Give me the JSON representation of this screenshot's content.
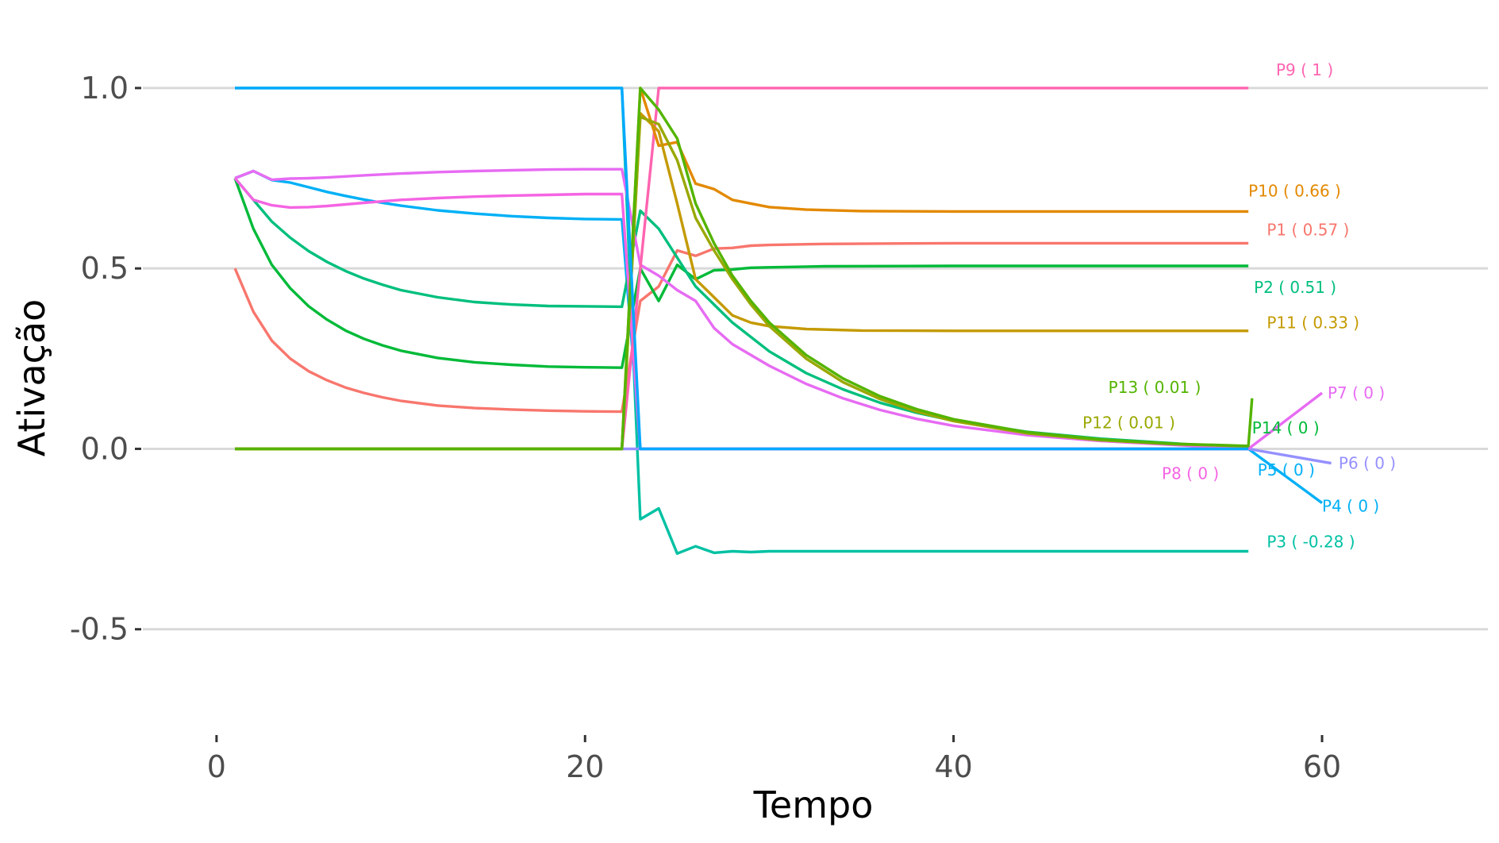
{
  "chart_data": {
    "type": "line",
    "title": "",
    "xlabel": "Tempo",
    "ylabel": "Ativação",
    "xlim": [
      -4,
      69
    ],
    "ylim": [
      -0.78,
      1.2
    ],
    "x_ticks": [
      0,
      20,
      40,
      60
    ],
    "x_tick_labels": [
      "0",
      "20",
      "40",
      "60"
    ],
    "y_ticks": [
      1.0,
      0.5,
      0.0,
      -0.5
    ],
    "y_tick_labels": [
      "1.0",
      "0.5",
      "0.0",
      "-0.5"
    ],
    "grid": "horizontal major",
    "legend": "none (direct labels at line ends)",
    "series": [
      {
        "id": "P1",
        "color": "#F8766D",
        "label": "P1 ( 0.57 )",
        "points": [
          [
            1,
            0.5
          ],
          [
            2,
            0.38
          ],
          [
            3,
            0.3
          ],
          [
            4,
            0.25
          ],
          [
            5,
            0.215
          ],
          [
            6,
            0.19
          ],
          [
            7,
            0.17
          ],
          [
            8,
            0.155
          ],
          [
            9,
            0.143
          ],
          [
            10,
            0.133
          ],
          [
            12,
            0.12
          ],
          [
            14,
            0.113
          ],
          [
            16,
            0.109
          ],
          [
            18,
            0.106
          ],
          [
            20,
            0.104
          ],
          [
            22,
            0.103
          ],
          [
            23,
            0.41
          ],
          [
            24,
            0.45
          ],
          [
            25,
            0.55
          ],
          [
            26,
            0.535
          ],
          [
            27,
            0.555
          ],
          [
            28,
            0.557
          ],
          [
            29,
            0.563
          ],
          [
            30,
            0.565
          ],
          [
            33,
            0.568
          ],
          [
            40,
            0.57
          ],
          [
            56,
            0.57
          ]
        ]
      },
      {
        "id": "P2",
        "color": "#00BA38",
        "label": "P2 ( 0.51 )",
        "points": [
          [
            1,
            0.75
          ],
          [
            2,
            0.61
          ],
          [
            3,
            0.51
          ],
          [
            4,
            0.445
          ],
          [
            5,
            0.395
          ],
          [
            6,
            0.358
          ],
          [
            7,
            0.328
          ],
          [
            8,
            0.305
          ],
          [
            9,
            0.287
          ],
          [
            10,
            0.272
          ],
          [
            12,
            0.252
          ],
          [
            14,
            0.24
          ],
          [
            16,
            0.233
          ],
          [
            18,
            0.228
          ],
          [
            20,
            0.226
          ],
          [
            22,
            0.225
          ],
          [
            23,
            0.5
          ],
          [
            24,
            0.41
          ],
          [
            25,
            0.51
          ],
          [
            26,
            0.47
          ],
          [
            27,
            0.495
          ],
          [
            28,
            0.497
          ],
          [
            29,
            0.502
          ],
          [
            30,
            0.503
          ],
          [
            33,
            0.506
          ],
          [
            40,
            0.507
          ],
          [
            56,
            0.507
          ]
        ]
      },
      {
        "id": "P3",
        "color": "#00C1A3",
        "label": "P3 ( -0.28 )",
        "points": [
          [
            1,
            1.0
          ],
          [
            22,
            1.0
          ],
          [
            23,
            -0.195
          ],
          [
            24,
            -0.165
          ],
          [
            25,
            -0.29
          ],
          [
            26,
            -0.27
          ],
          [
            27,
            -0.288
          ],
          [
            28,
            -0.284
          ],
          [
            29,
            -0.286
          ],
          [
            30,
            -0.284
          ],
          [
            35,
            -0.284
          ],
          [
            56,
            -0.284
          ]
        ]
      },
      {
        "id": "P4",
        "color": "#00B0F6",
        "label": "P4 ( 0 )",
        "points": [
          [
            1,
            0.75
          ],
          [
            2,
            0.77
          ],
          [
            3,
            0.745
          ],
          [
            4,
            0.738
          ],
          [
            5,
            0.725
          ],
          [
            6,
            0.712
          ],
          [
            7,
            0.701
          ],
          [
            8,
            0.691
          ],
          [
            9,
            0.682
          ],
          [
            10,
            0.674
          ],
          [
            12,
            0.661
          ],
          [
            14,
            0.652
          ],
          [
            16,
            0.645
          ],
          [
            18,
            0.64
          ],
          [
            20,
            0.637
          ],
          [
            22,
            0.636
          ],
          [
            23,
            0.0
          ],
          [
            56,
            0.0
          ],
          [
            60,
            -0.15
          ]
        ]
      },
      {
        "id": "P5",
        "color": "#00BF7D",
        "label": "P5 ( 0 )",
        "points": [
          [
            1,
            0.75
          ],
          [
            2,
            0.69
          ],
          [
            3,
            0.63
          ],
          [
            4,
            0.585
          ],
          [
            5,
            0.548
          ],
          [
            6,
            0.518
          ],
          [
            7,
            0.493
          ],
          [
            8,
            0.472
          ],
          [
            9,
            0.455
          ],
          [
            10,
            0.44
          ],
          [
            12,
            0.42
          ],
          [
            14,
            0.407
          ],
          [
            16,
            0.4
          ],
          [
            18,
            0.396
          ],
          [
            20,
            0.395
          ],
          [
            22,
            0.394
          ],
          [
            23,
            0.66
          ],
          [
            24,
            0.61
          ],
          [
            25,
            0.53
          ],
          [
            26,
            0.45
          ],
          [
            27,
            0.4
          ],
          [
            28,
            0.35
          ],
          [
            30,
            0.27
          ],
          [
            32,
            0.21
          ],
          [
            34,
            0.165
          ],
          [
            36,
            0.128
          ],
          [
            38,
            0.1
          ],
          [
            40,
            0.078
          ],
          [
            44,
            0.047
          ],
          [
            48,
            0.028
          ],
          [
            52,
            0.015
          ],
          [
            56,
            0.0
          ]
        ]
      },
      {
        "id": "P6",
        "color": "#9590FF",
        "label": "P6 ( 0 )",
        "points": [
          [
            1,
            0.0
          ],
          [
            22,
            0.0
          ],
          [
            23,
            0.0
          ],
          [
            56,
            0.0
          ],
          [
            60.5,
            -0.04
          ]
        ]
      },
      {
        "id": "P7",
        "color": "#E76BF3",
        "label": "P7 ( 0 )",
        "points": [
          [
            1,
            0.75
          ],
          [
            2,
            0.77
          ],
          [
            3,
            0.746
          ],
          [
            4,
            0.749
          ],
          [
            5,
            0.75
          ],
          [
            6,
            0.752
          ],
          [
            8,
            0.758
          ],
          [
            10,
            0.763
          ],
          [
            12,
            0.767
          ],
          [
            14,
            0.77
          ],
          [
            16,
            0.772
          ],
          [
            18,
            0.774
          ],
          [
            20,
            0.775
          ],
          [
            22,
            0.775
          ],
          [
            23,
            0.51
          ],
          [
            24,
            0.48
          ],
          [
            25,
            0.44
          ],
          [
            26,
            0.41
          ],
          [
            27,
            0.335
          ],
          [
            28,
            0.29
          ],
          [
            30,
            0.23
          ],
          [
            32,
            0.18
          ],
          [
            34,
            0.14
          ],
          [
            36,
            0.108
          ],
          [
            38,
            0.083
          ],
          [
            40,
            0.064
          ],
          [
            44,
            0.038
          ],
          [
            48,
            0.022
          ],
          [
            52,
            0.011
          ],
          [
            56,
            0.0
          ],
          [
            60,
            0.155
          ]
        ]
      },
      {
        "id": "P8",
        "color": "#F564E3",
        "label": "P8 ( 0 )",
        "points": [
          [
            1,
            0.75
          ],
          [
            2,
            0.69
          ],
          [
            3,
            0.675
          ],
          [
            4,
            0.669
          ],
          [
            5,
            0.67
          ],
          [
            6,
            0.673
          ],
          [
            8,
            0.682
          ],
          [
            10,
            0.69
          ],
          [
            12,
            0.695
          ],
          [
            14,
            0.699
          ],
          [
            16,
            0.702
          ],
          [
            18,
            0.704
          ],
          [
            20,
            0.706
          ],
          [
            22,
            0.706
          ],
          [
            23,
            0.0
          ],
          [
            56,
            0.0
          ]
        ]
      },
      {
        "id": "P9",
        "color": "#FF64B0",
        "label": "P9 ( 1 )",
        "points": [
          [
            1,
            0.0
          ],
          [
            22,
            0.0
          ],
          [
            23,
            0.5
          ],
          [
            24,
            1.0
          ],
          [
            56,
            1.0
          ]
        ]
      },
      {
        "id": "P10",
        "color": "#E38900",
        "label": "P10 ( 0.66 )",
        "points": [
          [
            1,
            0.0
          ],
          [
            22,
            0.0
          ],
          [
            23,
            1.0
          ],
          [
            24,
            0.84
          ],
          [
            25,
            0.85
          ],
          [
            26,
            0.735
          ],
          [
            27,
            0.72
          ],
          [
            28,
            0.69
          ],
          [
            29,
            0.68
          ],
          [
            30,
            0.67
          ],
          [
            32,
            0.663
          ],
          [
            35,
            0.659
          ],
          [
            40,
            0.658
          ],
          [
            56,
            0.658
          ]
        ]
      },
      {
        "id": "P11",
        "color": "#C49A00",
        "label": "P11 ( 0.33 )",
        "points": [
          [
            1,
            0.0
          ],
          [
            22,
            0.0
          ],
          [
            23,
            0.93
          ],
          [
            24,
            0.88
          ],
          [
            25,
            0.68
          ],
          [
            26,
            0.47
          ],
          [
            27,
            0.42
          ],
          [
            28,
            0.37
          ],
          [
            29,
            0.35
          ],
          [
            30,
            0.34
          ],
          [
            32,
            0.332
          ],
          [
            35,
            0.328
          ],
          [
            40,
            0.327
          ],
          [
            56,
            0.327
          ]
        ]
      },
      {
        "id": "P12",
        "color": "#99A800",
        "label": "P12 ( 0.01 )",
        "points": [
          [
            1,
            0.0
          ],
          [
            22,
            0.0
          ],
          [
            23,
            0.92
          ],
          [
            24,
            0.9
          ],
          [
            25,
            0.8
          ],
          [
            26,
            0.64
          ],
          [
            27,
            0.55
          ],
          [
            28,
            0.47
          ],
          [
            29,
            0.4
          ],
          [
            30,
            0.34
          ],
          [
            32,
            0.25
          ],
          [
            34,
            0.185
          ],
          [
            36,
            0.138
          ],
          [
            38,
            0.103
          ],
          [
            40,
            0.077
          ],
          [
            44,
            0.043
          ],
          [
            48,
            0.024
          ],
          [
            52,
            0.013
          ],
          [
            56,
            0.007
          ]
        ]
      },
      {
        "id": "P13",
        "color": "#53B400",
        "label": "P13 ( 0.01 )",
        "points": [
          [
            1,
            0.0
          ],
          [
            22,
            0.0
          ],
          [
            23,
            1.0
          ],
          [
            24,
            0.94
          ],
          [
            25,
            0.86
          ],
          [
            26,
            0.68
          ],
          [
            27,
            0.57
          ],
          [
            28,
            0.48
          ],
          [
            29,
            0.41
          ],
          [
            30,
            0.35
          ],
          [
            32,
            0.26
          ],
          [
            34,
            0.195
          ],
          [
            36,
            0.146
          ],
          [
            38,
            0.11
          ],
          [
            40,
            0.082
          ],
          [
            44,
            0.046
          ],
          [
            48,
            0.026
          ],
          [
            52,
            0.014
          ],
          [
            56,
            0.008
          ],
          [
            56.2,
            0.14
          ]
        ]
      },
      {
        "id": "P14",
        "color": "#00A9FF",
        "label": "P14 ( 0 )",
        "points": [
          [
            1,
            1.0
          ],
          [
            22,
            1.0
          ],
          [
            23,
            0.0
          ],
          [
            56,
            0.0
          ]
        ]
      }
    ],
    "point_labels": [
      {
        "text": "P9 ( 1 )",
        "color": "#FF64B0",
        "x": 57.5,
        "y": 1.05
      },
      {
        "text": "P10 ( 0.66 )",
        "color": "#E38900",
        "x": 56.0,
        "y": 0.715
      },
      {
        "text": "P1 ( 0.57 )",
        "color": "#F8766D",
        "x": 57.0,
        "y": 0.607
      },
      {
        "text": "P2 ( 0.51 )",
        "color": "#00BF7D",
        "x": 56.3,
        "y": 0.448
      },
      {
        "text": "P11 ( 0.33 )",
        "color": "#C49A00",
        "x": 57.0,
        "y": 0.35
      },
      {
        "text": "P13 ( 0.01 )",
        "color": "#53B400",
        "x": 48.4,
        "y": 0.17
      },
      {
        "text": "P7 ( 0 )",
        "color": "#E76BF3",
        "x": 60.3,
        "y": 0.155
      },
      {
        "text": "P12 ( 0.01 )",
        "color": "#99A800",
        "x": 47.0,
        "y": 0.072
      },
      {
        "text": "P14 ( 0 )",
        "color": "#00BA38",
        "x": 56.2,
        "y": 0.058
      },
      {
        "text": "P6 ( 0 )",
        "color": "#9590FF",
        "x": 60.9,
        "y": -0.04
      },
      {
        "text": "P8 ( 0 )",
        "color": "#F564E3",
        "x": 51.3,
        "y": -0.068
      },
      {
        "text": "P5 ( 0 )",
        "color": "#00B0F6",
        "x": 56.5,
        "y": -0.058
      },
      {
        "text": "P4 ( 0 )",
        "color": "#00B0F6",
        "x": 60.0,
        "y": -0.158
      },
      {
        "text": "P3 ( -0.28 )",
        "color": "#00C1A3",
        "x": 57.0,
        "y": -0.258
      }
    ]
  }
}
